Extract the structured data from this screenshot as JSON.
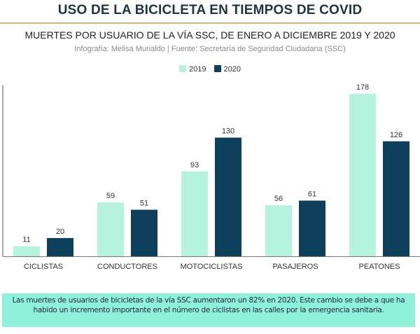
{
  "header": {
    "title": "USO DE LA BICICLETA EN TIEMPOS DE COVID",
    "subtitle": "MUERTES POR USUARIO DE LA VÍA SSC, DE ENERO A DICIEMBRE 2019 Y 2020",
    "credit": "Infografía: Melisa Murialdo | Fuente: Secretaría de Seguridad Ciudadana (SSC)"
  },
  "chart_data": {
    "type": "bar",
    "title": "MUERTES POR USUARIO DE LA VÍA SSC, DE ENERO A DICIEMBRE 2019 Y 2020",
    "xlabel": "",
    "ylabel": "",
    "categories": [
      "CICLISTAS",
      "CONDUCTORES",
      "MOTOCICLISTAS",
      "PASAJEROS",
      "PEATONES"
    ],
    "series": [
      {
        "name": "2019",
        "color": "#b5f3df",
        "values": [
          11,
          59,
          93,
          56,
          178
        ]
      },
      {
        "name": "2020",
        "color": "#0e3f5b",
        "values": [
          20,
          51,
          130,
          61,
          126
        ]
      }
    ],
    "ylim": [
      0,
      178
    ],
    "grid": false,
    "legend": "top-center",
    "data_labels": true
  },
  "note": {
    "text": "Las muertes de usuarios de bicicletas de la vía SSC aumentaron un 82% en 2020. Este cambio se debe a que ha habido un incremento importante en el número de ciclistas en las calles por la emergencia sanitaria."
  }
}
